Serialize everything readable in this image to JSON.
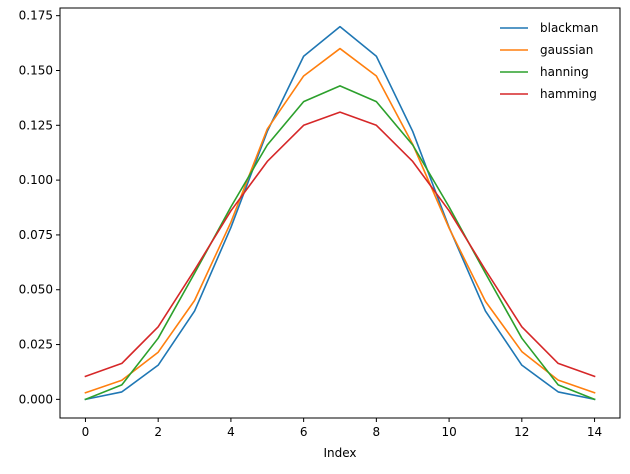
{
  "chart_data": {
    "type": "line",
    "title": "",
    "xlabel": "Index",
    "ylabel": "",
    "xlim": [
      -0.7,
      14.7
    ],
    "ylim": [
      -0.0085,
      0.1785
    ],
    "xticks": [
      0,
      2,
      4,
      6,
      8,
      10,
      12,
      14
    ],
    "yticks": [
      0.0,
      0.025,
      0.05,
      0.075,
      0.1,
      0.125,
      0.15,
      0.175
    ],
    "xtick_labels": [
      "0",
      "2",
      "4",
      "6",
      "8",
      "10",
      "12",
      "14"
    ],
    "ytick_labels": [
      "0.000",
      "0.025",
      "0.050",
      "0.075",
      "0.100",
      "0.125",
      "0.150",
      "0.175"
    ],
    "grid": false,
    "legend_position": "top-right",
    "x": [
      0,
      1,
      2,
      3,
      4,
      5,
      6,
      7,
      8,
      9,
      10,
      11,
      12,
      13,
      14
    ],
    "series": [
      {
        "name": "blackman",
        "color": "#1f77b4",
        "values": [
          0.0,
          0.0034,
          0.0156,
          0.0403,
          0.0784,
          0.1222,
          0.1565,
          0.17,
          0.1565,
          0.1222,
          0.0784,
          0.0403,
          0.0156,
          0.0034,
          0.0
        ]
      },
      {
        "name": "gaussian",
        "color": "#ff7f0e",
        "values": [
          0.003,
          0.0087,
          0.0215,
          0.0451,
          0.0808,
          0.1233,
          0.1475,
          0.16,
          0.1475,
          0.1163,
          0.0781,
          0.0447,
          0.0218,
          0.0088,
          0.003
        ]
      },
      {
        "name": "hanning",
        "color": "#2ca02c",
        "values": [
          0.0,
          0.0066,
          0.0279,
          0.0575,
          0.0878,
          0.116,
          0.1358,
          0.143,
          0.1358,
          0.116,
          0.0878,
          0.0575,
          0.0279,
          0.0066,
          0.0
        ]
      },
      {
        "name": "hamming",
        "color": "#d62728",
        "values": [
          0.0105,
          0.0164,
          0.0331,
          0.059,
          0.086,
          0.1085,
          0.125,
          0.131,
          0.125,
          0.1085,
          0.086,
          0.059,
          0.0331,
          0.0164,
          0.0105
        ]
      }
    ]
  }
}
